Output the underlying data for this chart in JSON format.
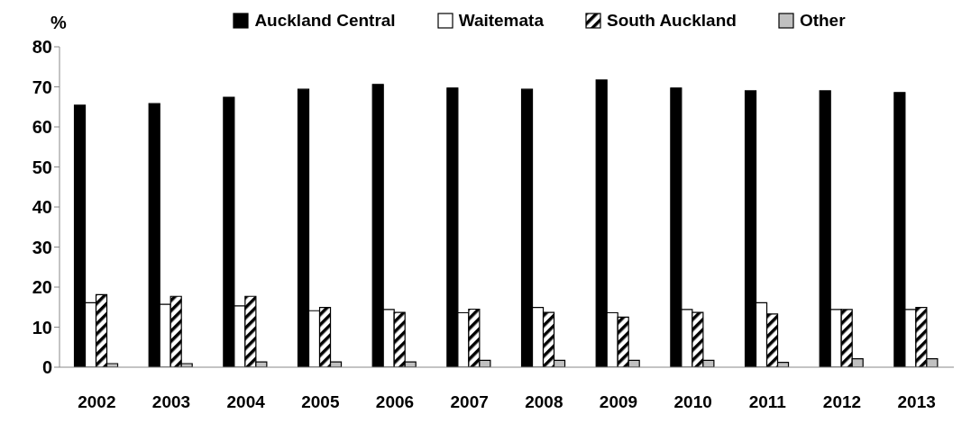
{
  "chart_data": {
    "type": "bar",
    "ylabel": "%",
    "categories": [
      "2002",
      "2003",
      "2004",
      "2005",
      "2006",
      "2007",
      "2008",
      "2009",
      "2010",
      "2011",
      "2012",
      "2013"
    ],
    "series": [
      {
        "name": "Auckland Central",
        "color": "#000000",
        "values": [
          65.4,
          65.8,
          67.4,
          69.4,
          70.6,
          69.7,
          69.4,
          71.7,
          69.7,
          69.0,
          69.0,
          68.6
        ]
      },
      {
        "name": "Waitemata",
        "color": "#ffffff",
        "values": [
          16.1,
          15.7,
          15.3,
          14.1,
          14.4,
          13.6,
          14.9,
          13.6,
          14.4,
          16.1,
          14.4,
          14.4
        ]
      },
      {
        "name": "South Auckland",
        "color": "#000000",
        "values": [
          18.1,
          17.7,
          17.7,
          14.9,
          13.7,
          14.5,
          13.7,
          12.5,
          13.7,
          13.3,
          14.4,
          14.9
        ]
      },
      {
        "name": "Other",
        "color": "#c0c0c0",
        "values": [
          0.9,
          0.9,
          1.3,
          1.3,
          1.3,
          1.7,
          1.7,
          1.7,
          1.7,
          1.2,
          2.1,
          2.1
        ]
      }
    ],
    "ylim": [
      0,
      80
    ],
    "yticks": [
      0,
      10,
      20,
      30,
      40,
      50,
      60,
      70,
      80
    ],
    "grid": false,
    "legend": "top"
  }
}
